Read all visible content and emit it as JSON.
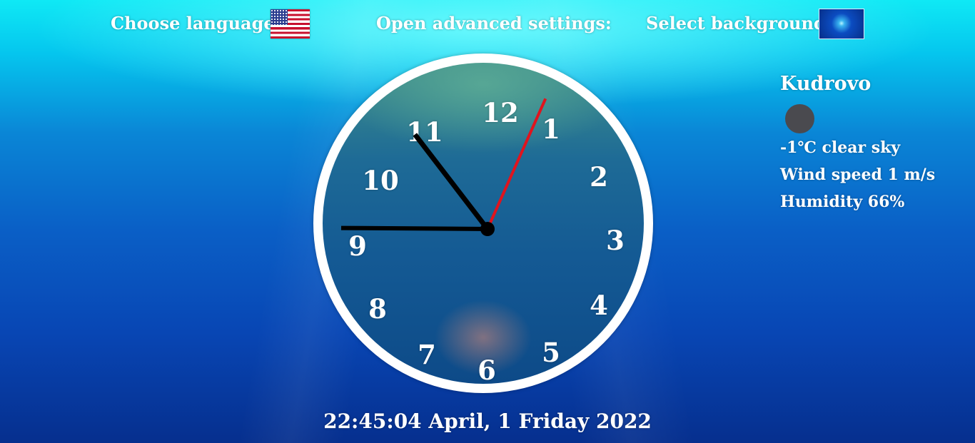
{
  "header": {
    "choose_language_label": "Choose language",
    "language_flag_icon": "us-flag-icon",
    "advanced_settings_label": "Open advanced settings:",
    "select_background_label": "Select background",
    "background_thumbnail_icon": "ocean-background-thumbnail"
  },
  "clock": {
    "numerals": [
      "12",
      "1",
      "2",
      "3",
      "4",
      "5",
      "6",
      "7",
      "8",
      "9",
      "10",
      "11"
    ],
    "time": {
      "hours": 22,
      "minutes": 45,
      "seconds": 4
    },
    "colors": {
      "hour_hand": "#000000",
      "minute_hand": "#000000",
      "second_hand": "#e0141e",
      "rim": "#ffffff"
    }
  },
  "weather": {
    "city": "Kudrovo",
    "icon": "clear-sky-night-icon",
    "temperature_line": "-1℃ clear sky",
    "wind_line": "Wind speed 1 m/s",
    "humidity_line": "Humidity 66%"
  },
  "footer": {
    "datetime": "22:45:04 April, 1 Friday 2022"
  }
}
